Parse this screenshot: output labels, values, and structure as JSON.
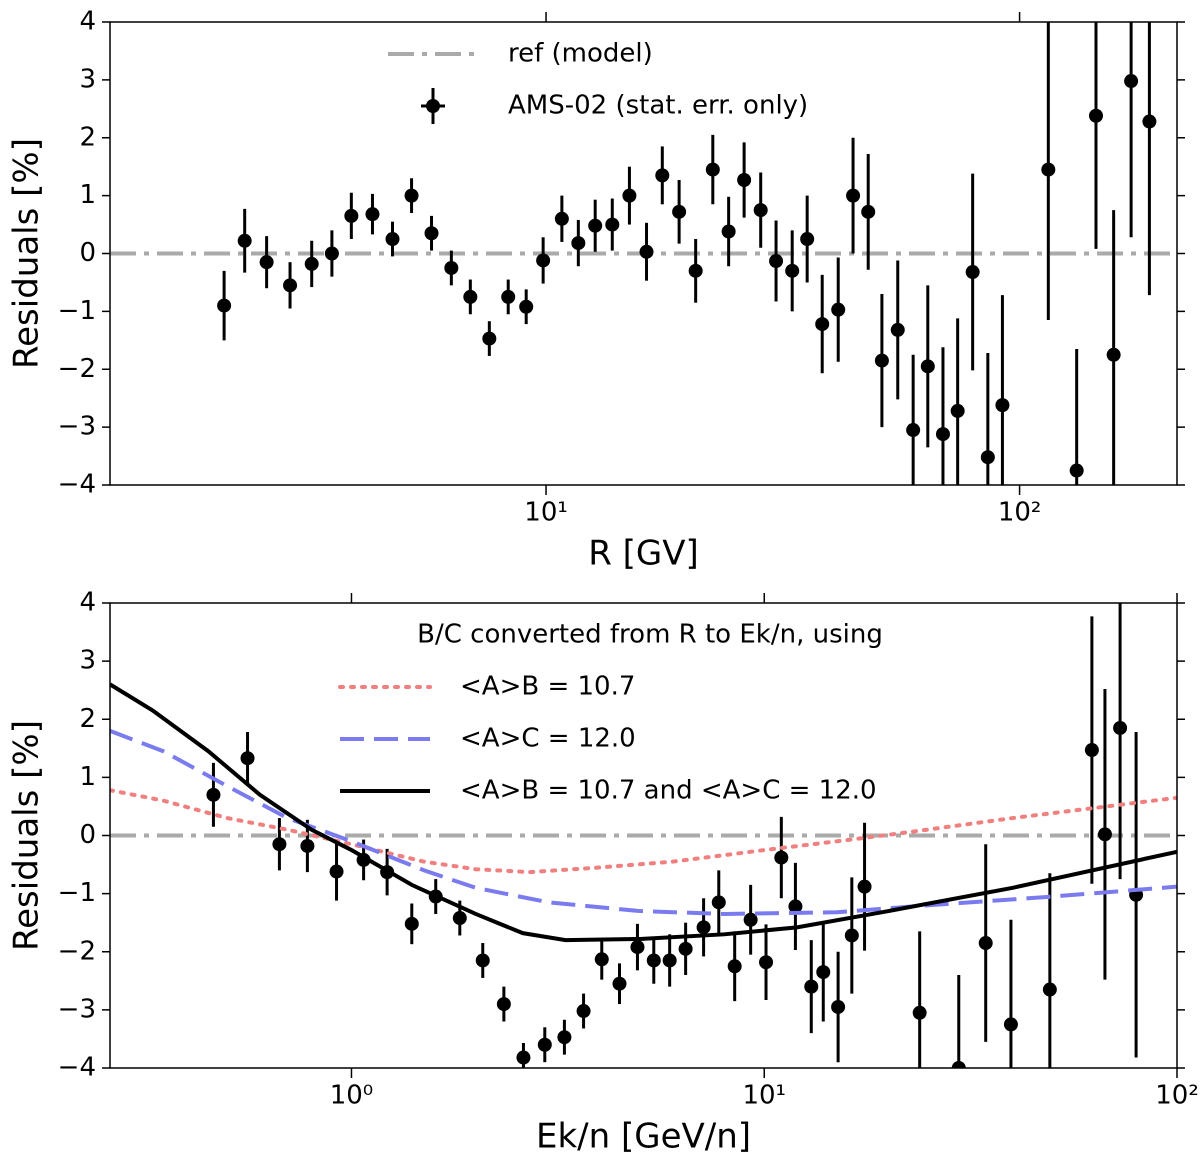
{
  "chart_data": [
    {
      "type": "errorbar",
      "xlabel": "R [GV]",
      "ylabel": "Residuals [%]",
      "xscale": "log",
      "legend": "upper center",
      "xlim": [
        1.2,
        215
      ],
      "ylim": [
        -4,
        4
      ],
      "xticks": [
        {
          "value": 10,
          "label": "10¹"
        },
        {
          "value": 100,
          "label": "10²"
        }
      ],
      "yticks": [
        {
          "value": -4,
          "label": "−4"
        },
        {
          "value": -3,
          "label": "−3"
        },
        {
          "value": -2,
          "label": "−2"
        },
        {
          "value": -1,
          "label": "−1"
        },
        0,
        1,
        2,
        3,
        4
      ],
      "series": [
        {
          "name": "ref (model)",
          "color": "#aaaaaa",
          "style": "dashdot",
          "x": [
            1.2,
            215
          ],
          "values": [
            0,
            0
          ]
        },
        {
          "name": "AMS-02 (stat. err. only)",
          "color": "#000000",
          "style": "points",
          "x": [
            2.09,
            2.31,
            2.57,
            2.88,
            3.2,
            3.53,
            3.88,
            4.3,
            4.74,
            5.2,
            5.73,
            6.31,
            6.92,
            7.59,
            8.32,
            9.08,
            9.86,
            10.8,
            11.7,
            12.7,
            13.8,
            15.0,
            16.3,
            17.6,
            19.1,
            20.7,
            22.5,
            24.3,
            26.2,
            28.4,
            30.6,
            33.1,
            35.6,
            38.3,
            41.4,
            44.5,
            47.9,
            51.2,
            55.3,
            59.6,
            64.0,
            68.9,
            74.0,
            79.6,
            85.7,
            92.0,
            115,
            132,
            145,
            158,
            172,
            188
          ],
          "values": [
            -0.9,
            0.22,
            -0.15,
            -0.55,
            -0.18,
            0,
            0.65,
            0.68,
            0.25,
            1.0,
            0.35,
            -0.25,
            -0.75,
            -1.47,
            -0.75,
            -0.92,
            -0.12,
            0.6,
            0.18,
            0.48,
            0.5,
            1.0,
            0.03,
            1.35,
            0.72,
            -0.3,
            1.45,
            0.38,
            1.27,
            0.75,
            -0.13,
            -0.3,
            0.25,
            -1.22,
            -0.97,
            1.0,
            0.72,
            -1.85,
            -1.32,
            -3.05,
            -1.95,
            -3.12,
            -2.72,
            -0.32,
            -3.52,
            -2.62,
            1.45,
            -3.75,
            2.38,
            -1.75,
            2.98,
            2.28
          ],
          "errors": [
            0.6,
            0.55,
            0.45,
            0.4,
            0.4,
            0.4,
            0.4,
            0.35,
            0.3,
            0.3,
            0.3,
            0.3,
            0.3,
            0.3,
            0.3,
            0.3,
            0.4,
            0.4,
            0.4,
            0.45,
            0.45,
            0.5,
            0.5,
            0.5,
            0.55,
            0.55,
            0.6,
            0.6,
            0.65,
            0.65,
            0.7,
            0.7,
            0.75,
            0.85,
            0.9,
            1.0,
            1.0,
            1.15,
            1.2,
            1.3,
            1.4,
            1.5,
            1.6,
            1.7,
            1.8,
            1.9,
            2.6,
            2.1,
            2.3,
            2.5,
            2.7,
            3.0
          ]
        }
      ]
    },
    {
      "type": "errorbar",
      "xlabel": "Ek/n [GeV/n]",
      "ylabel": "Residuals [%]",
      "xscale": "log",
      "legend": "upper right",
      "legend_title": "B/C converted from R to Ek/n, using",
      "xlim": [
        0.26,
        100
      ],
      "ylim": [
        -4,
        4
      ],
      "xticks": [
        {
          "value": 1,
          "label": "10⁰"
        },
        {
          "value": 10,
          "label": "10¹"
        },
        {
          "value": 100,
          "label": "10²"
        }
      ],
      "yticks": [
        {
          "value": -4,
          "label": "−4"
        },
        {
          "value": -3,
          "label": "−3"
        },
        {
          "value": -2,
          "label": "−2"
        },
        {
          "value": -1,
          "label": "−1"
        },
        0,
        1,
        2,
        3,
        4
      ],
      "series": [
        {
          "color": "#aaaaaa",
          "style": "dashdot",
          "x": [
            0.26,
            100
          ],
          "values": [
            0,
            0
          ]
        },
        {
          "color": "#000000",
          "style": "points",
          "x": [
            0.463,
            0.56,
            0.669,
            0.782,
            0.92,
            1.07,
            1.22,
            1.4,
            1.6,
            1.83,
            2.08,
            2.34,
            2.61,
            2.94,
            3.28,
            3.65,
            4.04,
            4.46,
            4.93,
            5.4,
            5.9,
            6.45,
            7.13,
            7.76,
            8.48,
            9.27,
            10.1,
            11.0,
            11.9,
            13.0,
            13.9,
            15.1,
            16.3,
            17.5,
            23.8,
            29.6,
            34.4,
            39.6,
            49.2,
            62.2,
            66.9,
            72.8,
            79.6
          ],
          "values": [
            0.7,
            1.33,
            -0.15,
            -0.18,
            -0.62,
            -0.42,
            -0.63,
            -1.52,
            -1.05,
            -1.42,
            -2.15,
            -2.9,
            -3.82,
            -3.6,
            -3.47,
            -3.02,
            -2.13,
            -2.55,
            -1.92,
            -2.15,
            -2.15,
            -1.95,
            -1.58,
            -1.15,
            -2.25,
            -1.45,
            -2.18,
            -0.38,
            -1.22,
            -2.6,
            -2.35,
            -2.95,
            -1.72,
            -0.88,
            -3.05,
            -4.0,
            -1.85,
            -3.25,
            -2.65,
            1.47,
            0.02,
            1.85,
            -1.02
          ],
          "errors": [
            0.55,
            0.45,
            0.45,
            0.45,
            0.5,
            0.35,
            0.4,
            0.35,
            0.3,
            0.3,
            0.3,
            0.3,
            0.25,
            0.3,
            0.3,
            0.3,
            0.35,
            0.35,
            0.4,
            0.4,
            0.45,
            0.45,
            0.5,
            0.55,
            0.6,
            0.6,
            0.65,
            0.7,
            0.75,
            0.8,
            0.85,
            0.95,
            1.0,
            1.1,
            1.4,
            1.6,
            1.7,
            1.8,
            2.0,
            2.3,
            2.5,
            2.6,
            2.8
          ]
        },
        {
          "name": "<A>B = 10.7",
          "color": "#f08080",
          "style": "dotted",
          "x": [
            0.26,
            0.35,
            0.5,
            0.7,
            1.0,
            1.5,
            2.0,
            2.7,
            4,
            6,
            10,
            15,
            22,
            40,
            100
          ],
          "values": [
            0.78,
            0.6,
            0.3,
            0.1,
            -0.15,
            -0.45,
            -0.58,
            -0.63,
            -0.55,
            -0.45,
            -0.25,
            -0.1,
            0.05,
            0.3,
            0.65
          ]
        },
        {
          "name": "<A>C = 12.0",
          "color": "#7b7bf0",
          "style": "dashed",
          "x": [
            0.26,
            0.35,
            0.5,
            0.7,
            1.0,
            1.5,
            2.0,
            3,
            5,
            8,
            15,
            25,
            50,
            100
          ],
          "values": [
            1.8,
            1.45,
            0.85,
            0.3,
            -0.1,
            -0.6,
            -0.9,
            -1.15,
            -1.3,
            -1.35,
            -1.32,
            -1.2,
            -1.05,
            -0.88
          ]
        },
        {
          "name": "<A>B = 10.7 and <A>C = 12.0",
          "color": "#000000",
          "style": "solid",
          "x": [
            0.26,
            0.33,
            0.45,
            0.6,
            0.8,
            1.0,
            1.4,
            2.0,
            2.6,
            3.3,
            5,
            8,
            12,
            20,
            40,
            100
          ],
          "values": [
            2.6,
            2.15,
            1.45,
            0.7,
            0.1,
            -0.25,
            -0.85,
            -1.35,
            -1.68,
            -1.8,
            -1.78,
            -1.7,
            -1.58,
            -1.3,
            -0.9,
            -0.28
          ]
        }
      ]
    }
  ]
}
